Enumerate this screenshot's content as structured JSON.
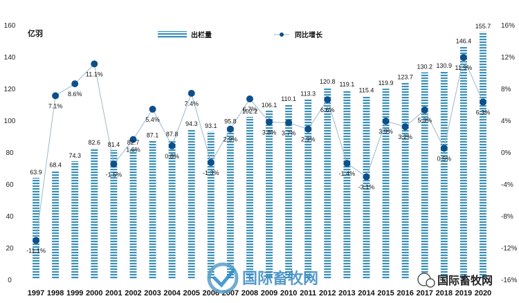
{
  "chart_data": {
    "type": "bar",
    "categories": [
      "1997",
      "1998",
      "1999",
      "2000",
      "2001",
      "2002",
      "2003",
      "2004",
      "2005",
      "2006",
      "2007",
      "2008",
      "2009",
      "2010",
      "2011",
      "2012",
      "2013",
      "2014",
      "2015",
      "2016",
      "2017",
      "2018",
      "2019",
      "2020"
    ],
    "ylabel": "亿羽",
    "ylim": [
      0,
      160
    ],
    "yticks": [
      0,
      20,
      40,
      60,
      80,
      100,
      120,
      140,
      160
    ],
    "y2lim": [
      -16,
      16
    ],
    "y2ticks": [
      "-16%",
      "-12%",
      "-8%",
      "-4%",
      "0%",
      "4%",
      "8%",
      "12%",
      "16%"
    ],
    "legend_position": "top",
    "grid": false,
    "series": [
      {
        "name": "出栏量",
        "type": "bar",
        "axis": "left",
        "color": "#3a8fb7",
        "values": [
          63.9,
          68.4,
          74.3,
          82.6,
          81.4,
          82.7,
          87.1,
          87.8,
          94.3,
          93.1,
          95.8,
          102.2,
          106.1,
          110.1,
          113.3,
          120.8,
          119.1,
          115.4,
          119.9,
          123.7,
          130.2,
          130.9,
          146.4,
          155.7
        ],
        "labels": [
          "63.9",
          "68.4",
          "74.3",
          "82.6",
          "81.4",
          "82.7",
          "87.1",
          "87.8",
          "94.3",
          "93.1",
          "95.8",
          "102.2",
          "106.1",
          "110.1",
          "113.3",
          "120.8",
          "119.1",
          "115.4",
          "119.9",
          "123.7",
          "130.2",
          "130.9",
          "146.4",
          "155.7"
        ]
      },
      {
        "name": "同比增长",
        "type": "line",
        "axis": "right",
        "color": "#0d4f8a",
        "values": [
          -11.1,
          7.1,
          8.6,
          11.1,
          -1.5,
          1.6,
          5.4,
          0.8,
          7.4,
          -1.3,
          2.9,
          6.7,
          3.8,
          3.7,
          2.9,
          6.6,
          -1.4,
          -3.1,
          3.9,
          3.2,
          5.3,
          0.5,
          11.9,
          6.3
        ],
        "labels": [
          "-11.1%",
          "7.1%",
          "8.6%",
          "11.1%",
          "-1.5%",
          "1.6%",
          "5.4%",
          "0.8%",
          "7.4%",
          "-1.3%",
          "2.9%",
          "6.7%",
          "3.8%",
          "3.7%",
          "2.9%",
          "6.6%",
          "-1.4%",
          "-3.1%",
          "3.9%",
          "3.2%",
          "5.3%",
          "0.5%",
          "11.9%",
          "6.3%"
        ]
      }
    ]
  },
  "watermarks": {
    "center_logo_text": "国际畜牧网",
    "corner_logo_text": "国际畜牧网"
  },
  "colors": {
    "bar_stripe": "#3a8fb7",
    "line": "#9ab8cc",
    "marker": "#0d4f8a"
  }
}
